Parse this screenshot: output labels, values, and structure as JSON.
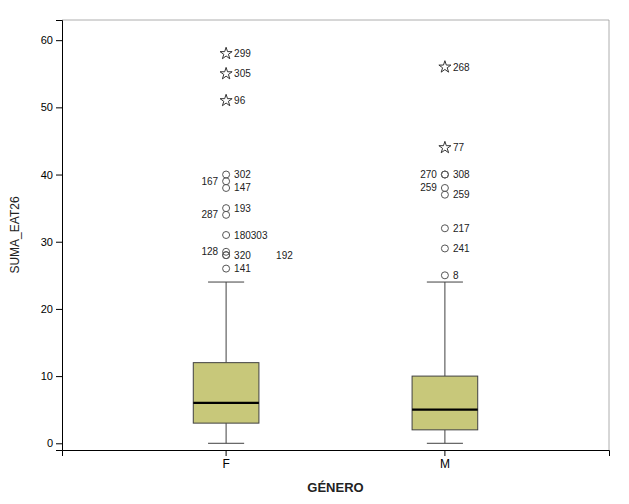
{
  "chart_data": {
    "type": "box",
    "xlabel": "GÉNERO",
    "ylabel": "SUMA_EAT26",
    "categories": [
      "F",
      "M"
    ],
    "color": "#c8c87a",
    "ylim": [
      -1,
      63
    ],
    "yticks": [
      0,
      10,
      20,
      30,
      40,
      50,
      60
    ],
    "grid": false,
    "boxes": [
      {
        "q1": 3,
        "median": 6,
        "q3": 12,
        "whisker_low": 0,
        "whisker_high": 24,
        "outliers": [
          {
            "y": 26,
            "label": "141"
          },
          {
            "y": 28,
            "label": "320"
          },
          {
            "y": 28.5,
            "label": "128"
          },
          {
            "y": 28,
            "label": "192"
          },
          {
            "y": 31,
            "label": "180303"
          },
          {
            "y": 35,
            "label": "193"
          },
          {
            "y": 34,
            "label": "287"
          },
          {
            "y": 38,
            "label": "147"
          },
          {
            "y": 39,
            "label": "167"
          },
          {
            "y": 40,
            "label": "302"
          }
        ],
        "extreme_outliers": [
          {
            "y": 51,
            "label": "96"
          },
          {
            "y": 55,
            "label": "305"
          },
          {
            "y": 58,
            "label": "299"
          }
        ]
      },
      {
        "q1": 2,
        "median": 5,
        "q3": 10,
        "whisker_low": 0,
        "whisker_high": 24,
        "outliers": [
          {
            "y": 25,
            "label": "8"
          },
          {
            "y": 29,
            "label": "241"
          },
          {
            "y": 32,
            "label": "217"
          },
          {
            "y": 37,
            "label": "259"
          },
          {
            "y": 38,
            "label": "259"
          },
          {
            "y": 40,
            "label": "308"
          },
          {
            "y": 40,
            "label": "270"
          }
        ],
        "extreme_outliers": [
          {
            "y": 44,
            "label": "77"
          },
          {
            "y": 56,
            "label": "268"
          }
        ]
      }
    ]
  }
}
